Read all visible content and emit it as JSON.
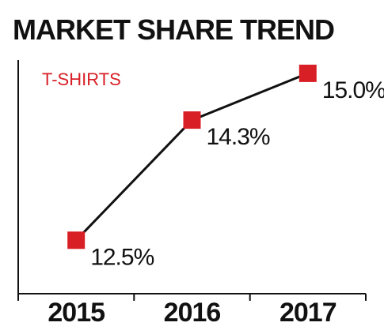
{
  "chart_data": {
    "type": "line",
    "title": "MARKET SHARE TREND",
    "series_label": "T-SHIRTS",
    "categories": [
      "2015",
      "2016",
      "2017"
    ],
    "series": [
      {
        "name": "T-SHIRTS",
        "values": [
          12.5,
          14.3,
          15.0
        ],
        "labels": [
          "12.5%",
          "14.3%",
          "15.0%"
        ]
      }
    ],
    "ylim": [
      11.7,
      15.2
    ],
    "grid": false,
    "colors": {
      "marker": "#d81f26",
      "line": "#111111",
      "axis": "#111111",
      "text": "#111111",
      "series_text": "#d81f26"
    }
  }
}
